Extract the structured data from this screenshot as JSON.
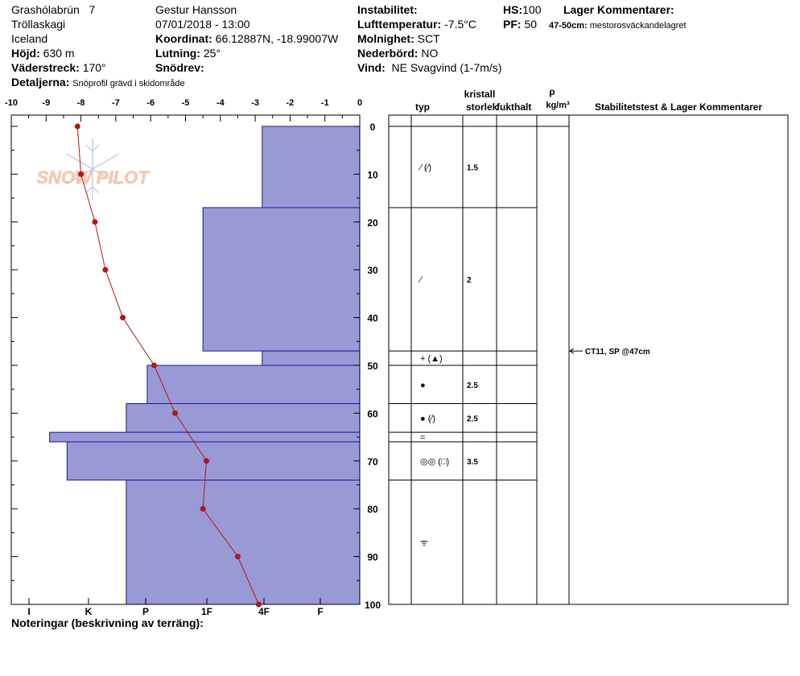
{
  "header": {
    "location": "Grashólabrún",
    "location_num": "7",
    "area": "Tröllaskagi",
    "country": "Iceland",
    "elevation_label": "Höjd:",
    "elevation": "630 m",
    "aspect_label": "Väderstreck:",
    "aspect": "170°",
    "detail_label": "Detaljerna:",
    "detail": "Snöprofil grävd i skidområde",
    "observer": "Gestur Hansson",
    "datetime": "07/01/2018 - 13:00",
    "coord_label": "Koordinat:",
    "coord": "66.12887N, -18.99007W",
    "slope_label": "Lutning:",
    "slope": "25°",
    "drift_label": "Snödrev:",
    "drift": "",
    "instab_label": "Instabilitet:",
    "instab": "",
    "airtemp_label": "Lufttemperatur:",
    "airtemp": "-7.5°C",
    "cloud_label": "Molnighet:",
    "cloud": "SCT",
    "precip_label": "Nederbörd:",
    "precip": "NO",
    "wind_label": "Vind:",
    "wind": "NE Svagvind (1-7m/s)",
    "hs_label": "HS:",
    "hs": "100",
    "pf_label": "PF:",
    "pf": "50",
    "layer_comments_label": "Lager Kommentarer:",
    "layer_comment_range": "47-50cm:",
    "layer_comment_text": "mestorosväckandelagret"
  },
  "notes_label": "Noteringar (beskrivning av terräng):",
  "watermark": "SNOW PILOT",
  "table": {
    "col_type": "typ",
    "col_crystal": "kristall",
    "col_size": "storlek",
    "col_moisture": "fukthalt",
    "col_rho": "ρ",
    "col_rho_unit": "kg/m³",
    "col_stability": "Stabilitetstest & Lager Kommentarer",
    "stability_test": "CT11, SP @47cm",
    "stability_depth": 47
  },
  "chart_data": {
    "type": "area",
    "temp_axis": {
      "min": -10,
      "max": 0,
      "ticks": [
        -10,
        -9,
        -8,
        -7,
        -6,
        -5,
        -4,
        -3,
        -2,
        -1,
        0
      ]
    },
    "depth_axis": {
      "min": 0,
      "max": 100,
      "ticks": [
        0,
        10,
        20,
        30,
        40,
        50,
        60,
        70,
        80,
        90,
        100
      ]
    },
    "hardness_labels": [
      "I",
      "K",
      "P",
      "1F",
      "4F",
      "F"
    ],
    "hardness_series": [
      {
        "top": 0,
        "bottom": 17,
        "temp_value": -2.8
      },
      {
        "top": 17,
        "bottom": 47,
        "temp_value": -4.5
      },
      {
        "top": 47,
        "bottom": 50,
        "temp_value": -2.8
      },
      {
        "top": 50,
        "bottom": 58,
        "temp_value": -6.1
      },
      {
        "top": 58,
        "bottom": 64,
        "temp_value": -6.7
      },
      {
        "top": 64,
        "bottom": 66,
        "temp_value": -8.9
      },
      {
        "top": 66,
        "bottom": 74,
        "temp_value": -8.4
      },
      {
        "top": 74,
        "bottom": 100,
        "temp_value": -6.7
      }
    ],
    "temperature_profile": [
      {
        "depth": 0,
        "temp": -8.1
      },
      {
        "depth": 10,
        "temp": -8.0
      },
      {
        "depth": 20,
        "temp": -7.6
      },
      {
        "depth": 30,
        "temp": -7.3
      },
      {
        "depth": 40,
        "temp": -6.8
      },
      {
        "depth": 50,
        "temp": -5.9
      },
      {
        "depth": 60,
        "temp": -5.3
      },
      {
        "depth": 70,
        "temp": -4.4
      },
      {
        "depth": 80,
        "temp": -4.5
      },
      {
        "depth": 90,
        "temp": -3.5
      },
      {
        "depth": 100,
        "temp": -2.9
      }
    ],
    "layers": [
      {
        "top": 0,
        "bottom": 17,
        "type": "⁄ (⁄)",
        "size": "1.5"
      },
      {
        "top": 17,
        "bottom": 47,
        "type": "⁄",
        "size": "2"
      },
      {
        "top": 47,
        "bottom": 50,
        "type": "+ (▲)",
        "size": ""
      },
      {
        "top": 50,
        "bottom": 58,
        "type": "●",
        "size": "2.5"
      },
      {
        "top": 58,
        "bottom": 64,
        "type": "● (⁄)",
        "size": "2.5"
      },
      {
        "top": 64,
        "bottom": 66,
        "type": "=",
        "size": ""
      },
      {
        "top": 66,
        "bottom": 74,
        "type": "◎◎ (□)",
        "size": "3.5"
      },
      {
        "top": 74,
        "bottom": 100,
        "type": "ᯤ",
        "size": ""
      }
    ],
    "colors": {
      "hardness_fill": "#9999d6",
      "temp_line": "#b01818",
      "axis": "#000000"
    }
  }
}
